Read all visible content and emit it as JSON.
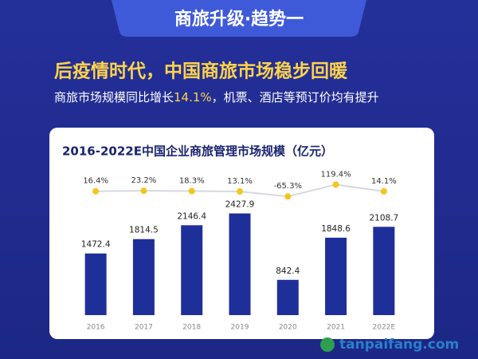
{
  "header": {
    "tab": "商旅升级·趋势一",
    "headline": "后疫情时代，中国商旅市场稳步回暖",
    "subtitle": [
      "商旅市场规模同比增长",
      "14.1%",
      "，机票、酒店等预订价均有提升"
    ]
  },
  "chart_data": {
    "type": "bar",
    "title": "2016-2022E中国企业商旅管理市场规模（亿元）",
    "categories": [
      "2016",
      "2017",
      "2018",
      "2019",
      "2020",
      "2021",
      "2022E"
    ],
    "values": [
      1472.4,
      1814.5,
      2146.4,
      2427.9,
      842.4,
      1848.6,
      2108.7
    ],
    "color": "#1f2f9a",
    "line": {
      "values": [
        16.4,
        23.2,
        18.3,
        13.1,
        -65.3,
        119.4,
        14.1
      ],
      "value_labels": [
        "16.4%",
        "23.2%",
        "18.3%",
        "13.1%",
        "-65.3%",
        "119.4%",
        "14.1%"
      ],
      "color": "#f5c518"
    }
  },
  "watermark": "tanpaifang.com"
}
